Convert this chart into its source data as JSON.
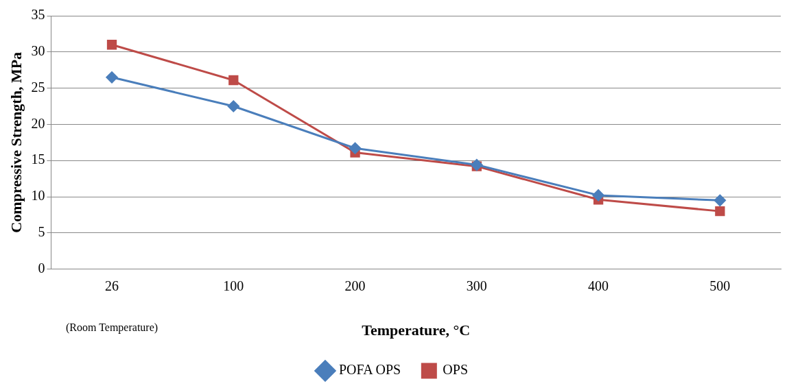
{
  "chart_data": {
    "type": "line",
    "xlabel": "Temperature, °C",
    "ylabel": "Compressive Strength, MPa",
    "categories": [
      "26",
      "100",
      "200",
      "300",
      "400",
      "500"
    ],
    "series": [
      {
        "name": "OPS",
        "color": "#be4b48",
        "marker": "square",
        "values": [
          31.0,
          26.1,
          16.1,
          14.2,
          9.6,
          8.0
        ]
      },
      {
        "name": "POFA OPS",
        "color": "#4a7ebb",
        "marker": "diamond",
        "values": [
          26.5,
          22.5,
          16.7,
          14.4,
          10.2,
          9.5
        ]
      }
    ],
    "annotations": [
      "(Room Temperature)"
    ],
    "ylim": [
      0,
      35
    ],
    "yticks": [
      0,
      5,
      10,
      15,
      20,
      25,
      30,
      35
    ],
    "grid": "y",
    "legend": "bottom"
  }
}
